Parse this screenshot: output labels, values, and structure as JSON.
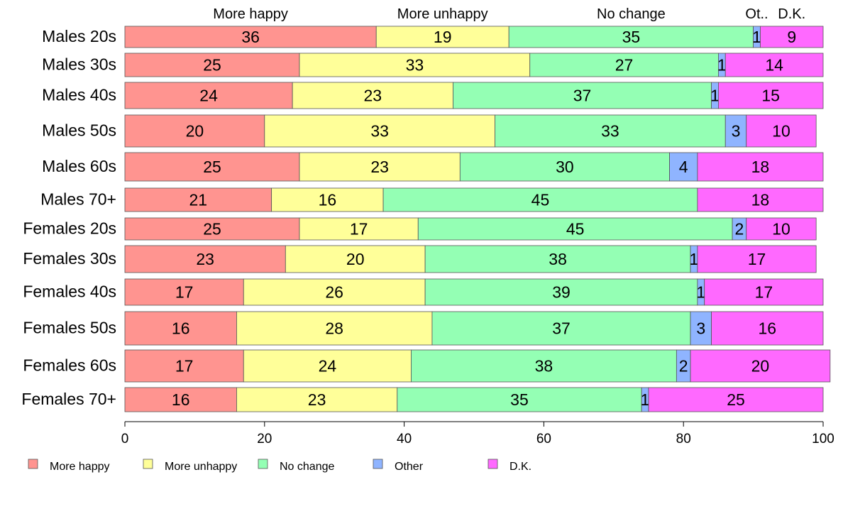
{
  "chart_data": {
    "type": "bar",
    "orientation": "horizontal",
    "stacked": true,
    "categories": [
      "Males 20s",
      "Males 30s",
      "Males 40s",
      "Males 50s",
      "Males 60s",
      "Males 70+",
      "Females 20s",
      "Females 30s",
      "Females 40s",
      "Females 50s",
      "Females 60s",
      "Females 70+"
    ],
    "series": [
      {
        "name": "More happy",
        "color": "#FF9490",
        "values": [
          36,
          25,
          24,
          20,
          25,
          21,
          25,
          23,
          17,
          16,
          17,
          16
        ]
      },
      {
        "name": "More unhappy",
        "color": "#FFFF99",
        "values": [
          19,
          33,
          23,
          33,
          23,
          16,
          17,
          20,
          26,
          28,
          24,
          23
        ]
      },
      {
        "name": "No change",
        "color": "#94FFB4",
        "values": [
          35,
          27,
          37,
          33,
          30,
          45,
          45,
          38,
          39,
          37,
          38,
          35
        ]
      },
      {
        "name": "Other",
        "color": "#8FB4FF",
        "values": [
          1,
          1,
          1,
          3,
          4,
          0,
          2,
          1,
          1,
          3,
          2,
          1
        ]
      },
      {
        "name": "D.K.",
        "color": "#FF69FF",
        "values": [
          9,
          14,
          15,
          10,
          18,
          18,
          10,
          17,
          17,
          16,
          20,
          25
        ]
      }
    ],
    "top_labels": [
      "More happy",
      "More unhappy",
      "No change",
      "Ot..",
      "D.K."
    ],
    "xlim": [
      0,
      100
    ],
    "xticks": [
      0,
      20,
      40,
      60,
      80,
      100
    ],
    "grid": false,
    "legend_position": "bottom"
  }
}
